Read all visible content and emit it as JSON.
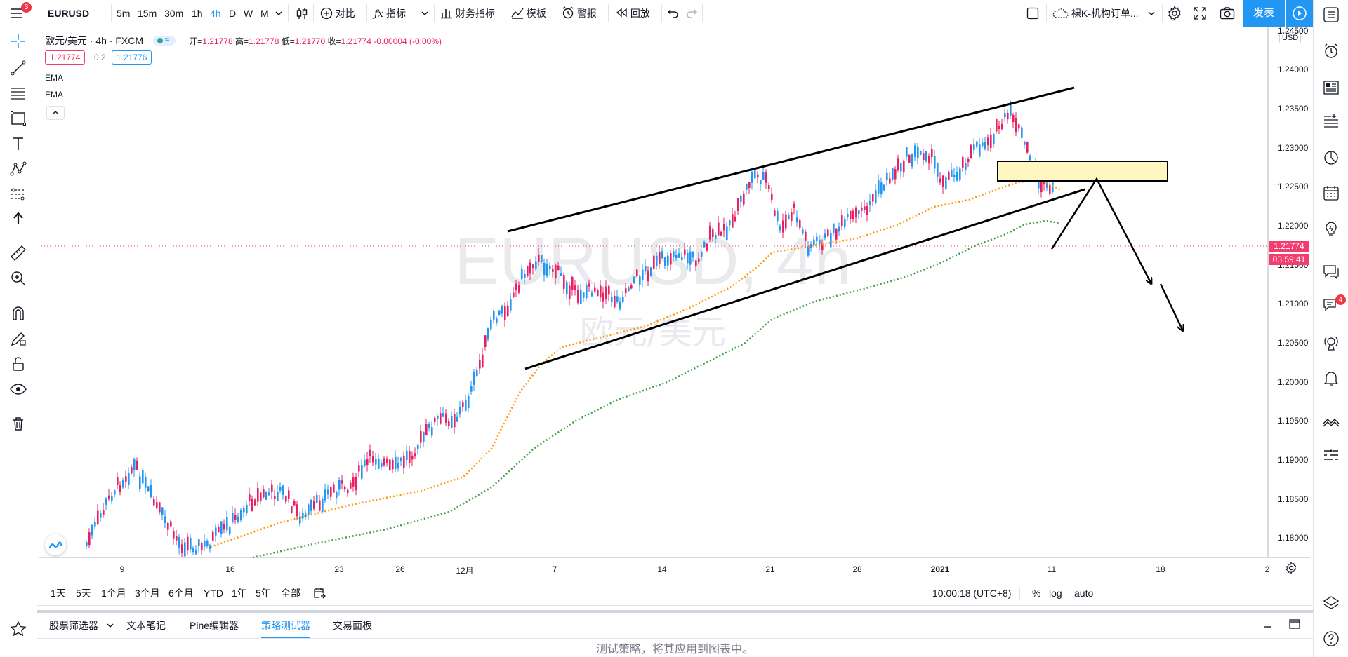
{
  "topbar": {
    "menu_badge": "3",
    "symbol": "EURUSD",
    "intervals": [
      "5m",
      "15m",
      "30m",
      "1h",
      "4h",
      "D",
      "W",
      "M"
    ],
    "active_interval": "4h",
    "compare": "对比",
    "indicators": "指标",
    "financials": "财务指标",
    "templates": "模板",
    "alerts": "警报",
    "replay": "回放",
    "layout_name": "裸K-机构订单...",
    "publish": "发表"
  },
  "legend": {
    "title": "欧元/美元 · 4h · FXCM",
    "open_label": "开=",
    "open": "1.21778",
    "high_label": "高=",
    "high": "1.21778",
    "low_label": "低=",
    "low": "1.21770",
    "close_label": "收=",
    "close": "1.21774",
    "change": "-0.00004 (-0.00%)",
    "bid": "1.21774",
    "spread": "0.2",
    "ask": "1.21776",
    "indicator1": "EMA",
    "indicator2": "EMA"
  },
  "watermark": {
    "symbol": "EURUSD, 4h",
    "name": "欧元/美元"
  },
  "price_axis": {
    "currency": "USD",
    "ticks": [
      "1.24500",
      "1.24000",
      "1.23500",
      "1.23000",
      "1.22500",
      "1.22000",
      "1.21500",
      "1.21000",
      "1.20500",
      "1.20000",
      "1.19500",
      "1.19000",
      "1.18500",
      "1.18000"
    ],
    "current_price": "1.21774",
    "countdown": "03:59:41"
  },
  "time_axis": {
    "ticks": [
      "9",
      "16",
      "23",
      "26",
      "12月",
      "7",
      "14",
      "21",
      "28",
      "2021",
      "11",
      "18",
      "2"
    ]
  },
  "chart_data": {
    "type": "candlestick",
    "symbol": "EURUSD",
    "interval": "4h",
    "ylim": [
      1.1775,
      1.2455
    ],
    "last_price": 1.21774,
    "ema_fast_color": "#ff9800",
    "ema_slow_color": "#43a047",
    "up_color": "#2196f3",
    "down_color": "#e91e63"
  },
  "rangebar": {
    "ranges": [
      "1天",
      "5天",
      "1个月",
      "3个月",
      "6个月",
      "YTD",
      "1年",
      "5年",
      "全部"
    ],
    "clock": "10:00:18 (UTC+8)",
    "percent": "%",
    "log": "log",
    "auto": "auto"
  },
  "panel": {
    "tabs": [
      "股票筛选器",
      "文本笔记",
      "Pine编辑器",
      "策略测试器",
      "交易面板"
    ],
    "active_tab": "策略测试器",
    "hint": "测试策略，将其应用到图表中。"
  },
  "right_toolbar": {
    "chat_badge": "4"
  },
  "colors": {
    "accent": "#2196f3",
    "down": "#e91e63",
    "up": "#2196f3",
    "price_tag": "#f23d6e"
  }
}
